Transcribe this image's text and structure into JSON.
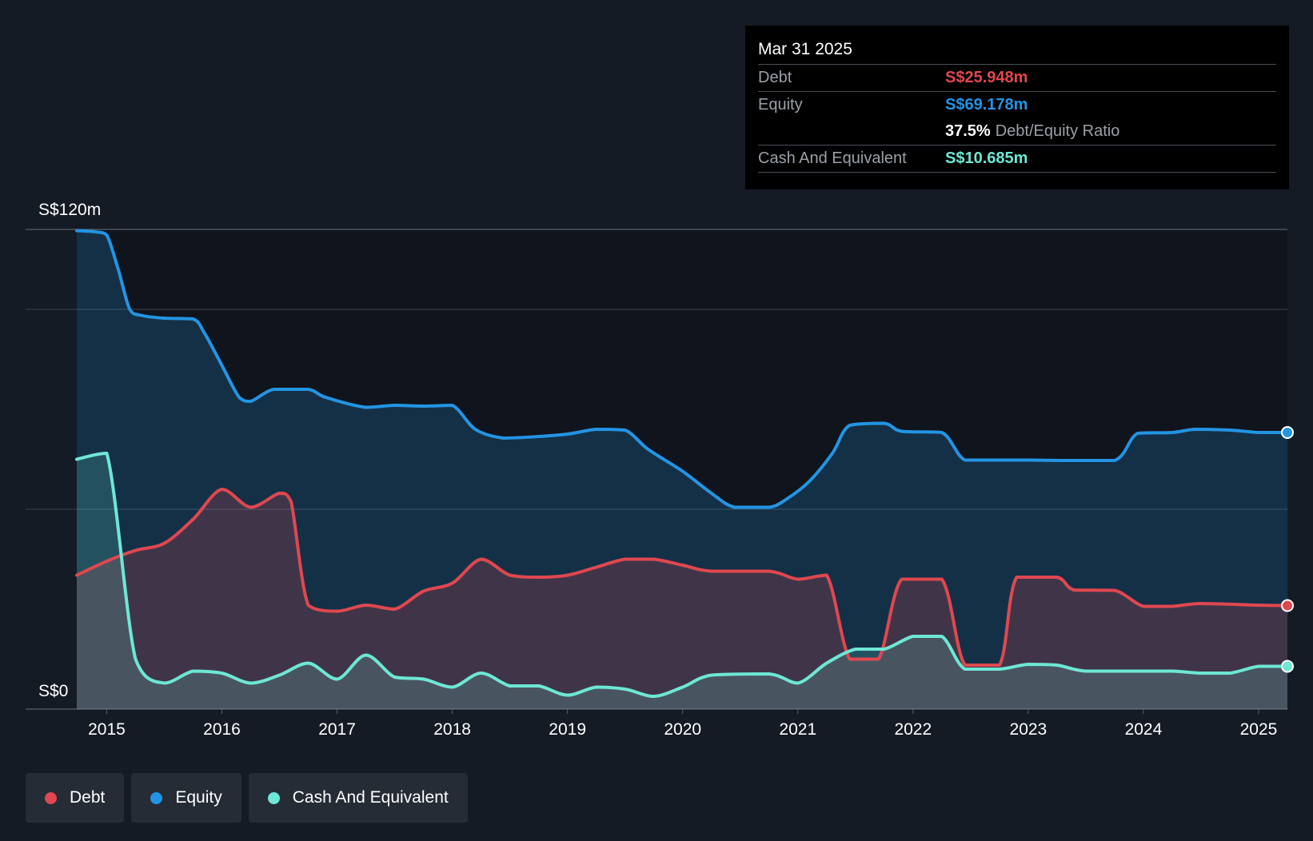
{
  "tooltip": {
    "date": "Mar 31 2025",
    "debt_label": "Debt",
    "debt_value": "S$25.948m",
    "equity_label": "Equity",
    "equity_value": "S$69.178m",
    "ratio_value": "37.5%",
    "ratio_label": "Debt/Equity Ratio",
    "cash_label": "Cash And Equivalent",
    "cash_value": "S$10.685m"
  },
  "legend": {
    "debt": "Debt",
    "equity": "Equity",
    "cash": "Cash And Equivalent"
  },
  "colors": {
    "debt": "#e0474f",
    "equity": "#2394e3",
    "cash": "#6ee7d5"
  },
  "chart_data": {
    "type": "area",
    "title": "",
    "xlabel": "",
    "ylabel": "",
    "y_top_label": "S$120m",
    "y_bottom_label": "S$0",
    "ylim": [
      0,
      120
    ],
    "xlim": [
      2014.74,
      2025.25
    ],
    "x_ticks": [
      "2015",
      "2016",
      "2017",
      "2018",
      "2019",
      "2020",
      "2021",
      "2022",
      "2023",
      "2024",
      "2025"
    ],
    "series": [
      {
        "name": "Equity",
        "points": [
          [
            2014.74,
            119.7
          ],
          [
            2014.9,
            119.4
          ],
          [
            2015.0,
            118.6
          ],
          [
            2015.1,
            110
          ],
          [
            2015.2,
            100
          ],
          [
            2015.3,
            98.5
          ],
          [
            2015.5,
            97.8
          ],
          [
            2015.75,
            97.6
          ],
          [
            2015.85,
            94
          ],
          [
            2016.0,
            86
          ],
          [
            2016.15,
            78
          ],
          [
            2016.25,
            77
          ],
          [
            2016.45,
            80
          ],
          [
            2016.75,
            80
          ],
          [
            2016.9,
            78
          ],
          [
            2017.25,
            75.5
          ],
          [
            2017.5,
            76
          ],
          [
            2017.75,
            75.8
          ],
          [
            2018.0,
            76
          ],
          [
            2018.2,
            70
          ],
          [
            2018.45,
            67.8
          ],
          [
            2018.75,
            68.2
          ],
          [
            2019.0,
            68.8
          ],
          [
            2019.25,
            70
          ],
          [
            2019.5,
            69.8
          ],
          [
            2019.7,
            65
          ],
          [
            2020.0,
            59.5
          ],
          [
            2020.25,
            54
          ],
          [
            2020.45,
            50.5
          ],
          [
            2020.75,
            50.5
          ],
          [
            2020.9,
            52.5
          ],
          [
            2021.1,
            57
          ],
          [
            2021.3,
            64
          ],
          [
            2021.45,
            71
          ],
          [
            2021.75,
            71.5
          ],
          [
            2021.9,
            69.5
          ],
          [
            2022.25,
            69.2
          ],
          [
            2022.45,
            62.3
          ],
          [
            2022.75,
            62.3
          ],
          [
            2023.0,
            62.3
          ],
          [
            2023.3,
            62.2
          ],
          [
            2023.75,
            62.2
          ],
          [
            2023.95,
            69
          ],
          [
            2024.25,
            69.2
          ],
          [
            2024.45,
            70
          ],
          [
            2024.75,
            69.8
          ],
          [
            2025.0,
            69.2
          ],
          [
            2025.25,
            69.2
          ]
        ]
      },
      {
        "name": "Debt",
        "points": [
          [
            2014.74,
            33.5
          ],
          [
            2015.0,
            37
          ],
          [
            2015.25,
            39.7
          ],
          [
            2015.5,
            41.5
          ],
          [
            2015.75,
            47.5
          ],
          [
            2016.0,
            55
          ],
          [
            2016.25,
            50.5
          ],
          [
            2016.5,
            54
          ],
          [
            2016.6,
            52
          ],
          [
            2016.75,
            26
          ],
          [
            2017.0,
            24.5
          ],
          [
            2017.25,
            26
          ],
          [
            2017.5,
            25
          ],
          [
            2017.75,
            29.5
          ],
          [
            2018.0,
            31.5
          ],
          [
            2018.25,
            37.5
          ],
          [
            2018.5,
            33.5
          ],
          [
            2018.75,
            33
          ],
          [
            2019.0,
            33.5
          ],
          [
            2019.25,
            35.5
          ],
          [
            2019.5,
            37.5
          ],
          [
            2019.75,
            37.5
          ],
          [
            2020.0,
            36
          ],
          [
            2020.25,
            34.5
          ],
          [
            2020.75,
            34.5
          ],
          [
            2021.0,
            32.5
          ],
          [
            2021.25,
            33.5
          ],
          [
            2021.45,
            12.5
          ],
          [
            2021.7,
            12.5
          ],
          [
            2021.9,
            32.5
          ],
          [
            2022.25,
            32.5
          ],
          [
            2022.45,
            11
          ],
          [
            2022.75,
            11
          ],
          [
            2022.9,
            33
          ],
          [
            2023.25,
            33
          ],
          [
            2023.4,
            29.8
          ],
          [
            2023.75,
            29.7
          ],
          [
            2024.0,
            25.7
          ],
          [
            2024.25,
            25.7
          ],
          [
            2024.5,
            26.4
          ],
          [
            2025.0,
            26
          ],
          [
            2025.25,
            25.9
          ]
        ]
      },
      {
        "name": "Cash And Equivalent",
        "points": [
          [
            2014.74,
            62.5
          ],
          [
            2015.0,
            64
          ],
          [
            2015.25,
            12.5
          ],
          [
            2015.5,
            6.5
          ],
          [
            2015.75,
            9.5
          ],
          [
            2016.0,
            9
          ],
          [
            2016.25,
            6.5
          ],
          [
            2016.5,
            8.5
          ],
          [
            2016.75,
            11.5
          ],
          [
            2017.0,
            7.5
          ],
          [
            2017.25,
            13.5
          ],
          [
            2017.5,
            8
          ],
          [
            2017.75,
            7.5
          ],
          [
            2018.0,
            5.5
          ],
          [
            2018.25,
            9
          ],
          [
            2018.5,
            5.8
          ],
          [
            2018.75,
            5.8
          ],
          [
            2019.0,
            3.5
          ],
          [
            2019.25,
            5.5
          ],
          [
            2019.5,
            5
          ],
          [
            2019.75,
            3.2
          ],
          [
            2020.0,
            5.5
          ],
          [
            2020.25,
            8.5
          ],
          [
            2020.75,
            8.8
          ],
          [
            2021.0,
            6.5
          ],
          [
            2021.25,
            11.5
          ],
          [
            2021.5,
            15
          ],
          [
            2021.75,
            15
          ],
          [
            2022.0,
            18.2
          ],
          [
            2022.25,
            18.2
          ],
          [
            2022.45,
            10
          ],
          [
            2022.75,
            10
          ],
          [
            2023.0,
            11.2
          ],
          [
            2023.25,
            11
          ],
          [
            2023.5,
            9.5
          ],
          [
            2024.0,
            9.5
          ],
          [
            2024.25,
            9.5
          ],
          [
            2024.5,
            9
          ],
          [
            2024.75,
            9
          ],
          [
            2025.0,
            10.7
          ],
          [
            2025.25,
            10.7
          ]
        ]
      }
    ]
  }
}
